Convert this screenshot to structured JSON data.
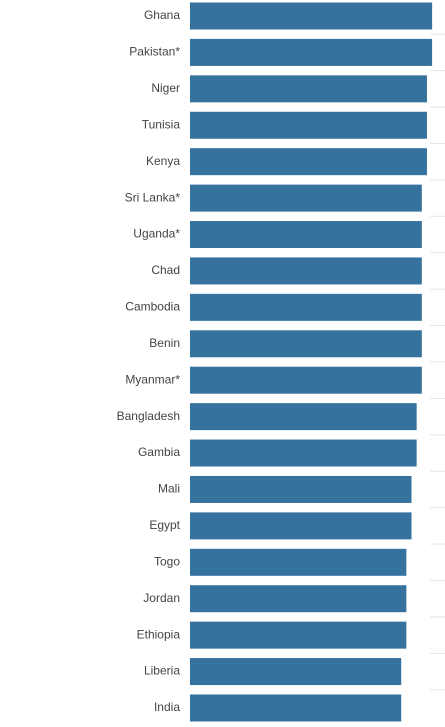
{
  "chart_data": {
    "type": "bar",
    "orientation": "horizontal",
    "categories": [
      "Ghana",
      "Pakistan*",
      "Niger",
      "Tunisia",
      "Kenya",
      "Sri Lanka*",
      "Uganda*",
      "Chad",
      "Cambodia",
      "Benin",
      "Myanmar*",
      "Bangladesh",
      "Gambia",
      "Mali",
      "Egypt",
      "Togo",
      "Jordan",
      "Ethiopia",
      "Liberia",
      "India"
    ],
    "values": [
      47,
      47,
      46,
      46,
      46,
      45,
      45,
      45,
      45,
      45,
      45,
      44,
      44,
      43,
      43,
      42,
      42,
      42,
      41,
      41
    ],
    "color": "#35739e",
    "xlim": [
      0,
      49.5
    ]
  }
}
